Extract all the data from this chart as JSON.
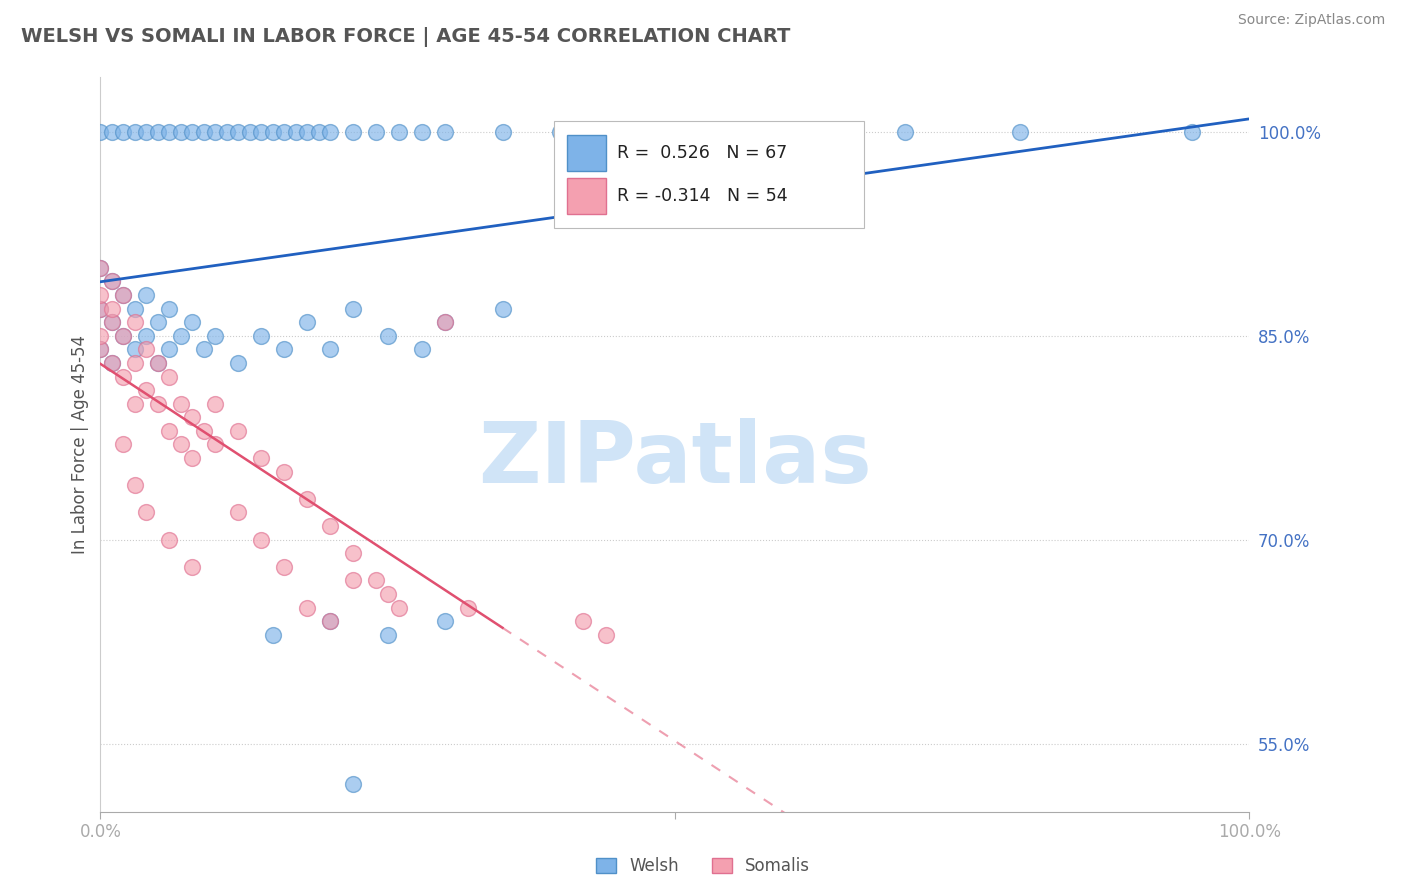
{
  "title": "WELSH VS SOMALI IN LABOR FORCE | AGE 45-54 CORRELATION CHART",
  "source_text": "Source: ZipAtlas.com",
  "ylabel": "In Labor Force | Age 45-54",
  "xlim": [
    0.0,
    1.0
  ],
  "ylim": [
    0.5,
    1.04
  ],
  "yticks": [
    0.55,
    0.7,
    0.85,
    1.0
  ],
  "ytick_labels": [
    "55.0%",
    "70.0%",
    "85.0%",
    "100.0%"
  ],
  "welsh_color": "#7EB3E8",
  "somali_color": "#F4A0B0",
  "welsh_edge": "#5090C8",
  "somali_edge": "#E07090",
  "blue_line_color": "#2060C0",
  "pink_line_color": "#E05070",
  "R_welsh": 0.526,
  "N_welsh": 67,
  "R_somali": -0.314,
  "N_somali": 54,
  "background_color": "#ffffff",
  "grid_color": "#cccccc",
  "tick_label_color": "#4472c4",
  "title_color": "#555555",
  "watermark_color": "#d0e4f7",
  "source_color": "#888888",
  "welsh_seed": 99,
  "somali_seed": 55
}
